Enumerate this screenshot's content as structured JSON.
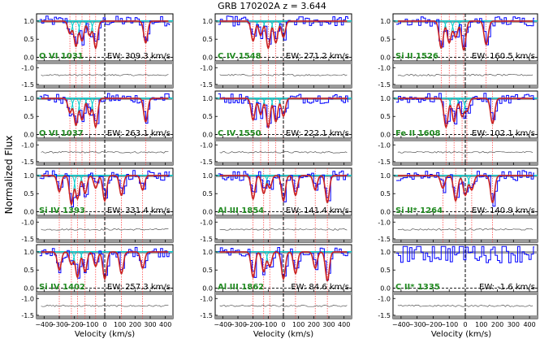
{
  "title": "GRB 170202A  z = 3.644",
  "ylabel": "Normalized Flux",
  "xlabel": "Velocity (km/s)",
  "colors": {
    "data": "#0000ff",
    "model": "#cc2222",
    "component": "#00cccc",
    "residual": "#555555",
    "zero_marker": "#000000",
    "component_marker": "#ff3333",
    "ion_label": "#228b22",
    "band": "#999999"
  },
  "chart_data": {
    "type": "line",
    "xlim": [
      -450,
      450
    ],
    "xticks": [
      -400,
      -300,
      -200,
      -100,
      0,
      100,
      200,
      300,
      400
    ],
    "flux_ylim": [
      -0.1,
      1.2
    ],
    "flux_yticks": [
      "0.0",
      "0.5",
      "1.0"
    ],
    "resid_ylim": [
      -1.6,
      -0.8
    ],
    "resid_yticks": [
      "-1.0",
      "-1.5"
    ],
    "panels": [
      {
        "ion": "O VI 1031",
        "ew": "EW: 309.3 km/s",
        "components": [
          -230,
          -190,
          -150,
          -100,
          -60,
          270
        ],
        "absorption": true
      },
      {
        "ion": "O VI 1037",
        "ew": "EW: 263.1 km/s",
        "components": [
          -230,
          -190,
          -150,
          -100,
          -60,
          270
        ],
        "absorption": true
      },
      {
        "ion": "Si IV 1393",
        "ew": "EW: 331.4 km/s",
        "components": [
          -300,
          -220,
          -180,
          -130,
          -60,
          0,
          110,
          250
        ],
        "absorption": true
      },
      {
        "ion": "Si IV 1402",
        "ew": "EW: 257.3 km/s",
        "components": [
          -300,
          -220,
          -180,
          -130,
          -60,
          0,
          110,
          250
        ],
        "absorption": true
      },
      {
        "ion": "C IV 1548",
        "ew": "EW: 271.2 km/s",
        "components": [
          -200,
          -150,
          -100,
          -50,
          0
        ],
        "absorption": true
      },
      {
        "ion": "C IV 1550",
        "ew": "EW: 222.1 km/s",
        "components": [
          -200,
          -150,
          -100,
          -50,
          0
        ],
        "absorption": true
      },
      {
        "ion": "Al III 1854",
        "ew": "EW: 141.4 km/s",
        "components": [
          -200,
          -130,
          -90,
          0,
          80,
          210,
          290
        ],
        "absorption": true
      },
      {
        "ion": "Al III 1862",
        "ew": "EW: 84.6 km/s",
        "components": [
          -200,
          -130,
          -90,
          0,
          80,
          210,
          290
        ],
        "absorption": true
      },
      {
        "ion": "Si II 1526",
        "ew": "EW: 160.5 km/s",
        "components": [
          -150,
          -100,
          -60,
          -10,
          130
        ],
        "absorption": true
      },
      {
        "ion": "Fe II 1608",
        "ew": "EW: 102.1 km/s",
        "components": [
          -120,
          -70,
          -20,
          10,
          170
        ],
        "absorption": true
      },
      {
        "ion": "Si II* 1264",
        "ew": "EW: 140.9 km/s",
        "components": [
          -140,
          -60,
          0,
          40,
          170
        ],
        "absorption": true
      },
      {
        "ion": "C II* 1335",
        "ew": "EW: -1.6 km/s",
        "components": [],
        "absorption": false
      }
    ]
  }
}
